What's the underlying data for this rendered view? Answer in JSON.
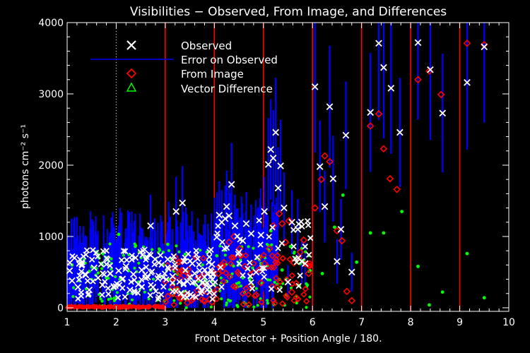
{
  "chart_data": {
    "type": "scatter",
    "title": "Visibilities − Observed, From Image, and Differences",
    "xlabel": "Front Detector + Position Angle / 180.",
    "ylabel": "photons cm⁻² s⁻¹",
    "xlim": [
      1,
      10
    ],
    "ylim": [
      -50,
      4000
    ],
    "x_ticks": [
      "1",
      "2",
      "3",
      "4",
      "5",
      "6",
      "7",
      "8",
      "9",
      "10"
    ],
    "y_ticks": [
      "0",
      "1000",
      "2000",
      "3000",
      "4000"
    ],
    "x_tick_values": [
      1,
      2,
      3,
      4,
      5,
      6,
      7,
      8,
      9,
      10
    ],
    "y_tick_values": [
      0,
      1000,
      2000,
      3000,
      4000
    ],
    "dotted_line_x": 2,
    "red_lines_x": [
      3,
      4,
      5,
      6,
      7,
      8,
      9
    ],
    "legend": {
      "position": "top-left",
      "entries": [
        {
          "label": "Observed",
          "marker": "x",
          "color": "#ffffff"
        },
        {
          "label": "Error on Observed",
          "marker": "line",
          "color": "#0000ff"
        },
        {
          "label": "From Image",
          "marker": "diamond",
          "color": "#ff0000"
        },
        {
          "label": "Vector Difference",
          "marker": "triangle",
          "color": "#00ff00"
        }
      ]
    },
    "colors": {
      "observed": "#ffffff",
      "error": "#0000ff",
      "image": "#ff0000",
      "difference": "#00ff00",
      "dividers": "#ff0000",
      "axes": "#ffffff"
    },
    "series": [
      {
        "name": "Observed",
        "x": [
          1.05,
          1.1,
          1.15,
          1.22,
          1.3,
          1.38,
          1.45,
          1.55,
          1.63,
          1.72,
          1.8,
          1.88,
          1.95,
          2.05,
          2.12,
          2.2,
          2.28,
          2.35,
          2.45,
          2.52,
          2.6,
          2.7,
          2.75,
          2.85,
          3.05,
          3.15,
          3.22,
          3.35,
          3.45,
          3.55,
          3.6,
          3.7,
          3.8,
          3.85,
          3.95,
          4.05,
          4.1,
          4.15,
          4.22,
          4.25,
          4.3,
          4.35,
          4.42,
          4.5,
          4.58,
          4.65,
          4.75,
          4.85,
          4.95,
          5.02,
          5.1,
          5.15,
          5.2,
          5.25,
          5.3,
          5.35,
          5.42,
          5.5,
          5.58,
          5.7,
          5.78,
          5.85,
          6.05,
          6.15,
          6.25,
          6.35,
          6.42,
          6.5,
          6.58,
          6.68,
          6.8,
          7.18,
          7.35,
          7.45,
          7.6,
          7.78,
          8.15,
          8.4,
          8.65,
          9.15,
          9.5
        ],
        "y": [
          520,
          380,
          700,
          290,
          610,
          460,
          250,
          560,
          420,
          320,
          610,
          480,
          300,
          520,
          400,
          580,
          250,
          470,
          330,
          530,
          420,
          1150,
          290,
          410,
          680,
          440,
          1350,
          1470,
          370,
          620,
          480,
          520,
          430,
          350,
          610,
          990,
          1300,
          1200,
          1250,
          1420,
          1290,
          1730,
          1150,
          780,
          940,
          1180,
          1040,
          500,
          1020,
          1350,
          2010,
          2220,
          2100,
          2460,
          1680,
          1990,
          1400,
          360,
          1200,
          1100,
          650,
          620,
          3100,
          1980,
          1420,
          2820,
          1810,
          650,
          1100,
          2420,
          500,
          2740,
          3710,
          3370,
          3080,
          2460,
          3720,
          3340,
          2730,
          3160,
          3660
        ]
      },
      {
        "name": "From Image",
        "x": [
          3.05,
          3.15,
          3.3,
          3.45,
          3.6,
          3.8,
          3.9,
          3.95,
          4.08,
          4.15,
          4.3,
          4.4,
          4.52,
          4.62,
          4.72,
          4.85,
          4.95,
          5.02,
          5.12,
          5.2,
          5.32,
          5.38,
          5.45,
          5.52,
          5.58,
          5.62,
          5.75,
          5.82,
          5.92,
          6.05,
          6.18,
          6.25,
          6.35,
          6.5,
          6.6,
          6.7,
          6.8,
          7.18,
          7.35,
          7.45,
          7.58,
          7.72,
          8.15,
          8.38,
          8.62,
          9.15,
          9.5
        ],
        "y": [
          160,
          200,
          130,
          70,
          160,
          90,
          120,
          80,
          480,
          600,
          920,
          1000,
          830,
          580,
          300,
          180,
          350,
          620,
          830,
          1150,
          1320,
          1180,
          920,
          1220,
          220,
          630,
          780,
          950,
          480,
          1400,
          1800,
          2130,
          2050,
          1080,
          940,
          230,
          100,
          2550,
          2720,
          2230,
          1810,
          1660,
          3200,
          3320,
          2990,
          3710,
          3690
        ]
      },
      {
        "name": "Vector Difference",
        "x": [
          1.1,
          1.25,
          1.45,
          1.65,
          1.8,
          2.05,
          2.25,
          2.45,
          2.7,
          3.05,
          3.25,
          3.45,
          3.62,
          3.85,
          4.05,
          4.25,
          4.5,
          4.72,
          4.95,
          5.15,
          5.38,
          5.55,
          5.75,
          5.95,
          6.2,
          6.45,
          6.62,
          6.9,
          7.18,
          7.45,
          7.82,
          8.15,
          8.38,
          8.65,
          9.15,
          9.5
        ],
        "y": [
          600,
          380,
          510,
          700,
          420,
          1030,
          520,
          360,
          250,
          890,
          470,
          510,
          320,
          780,
          730,
          370,
          350,
          410,
          620,
          1080,
          530,
          860,
          620,
          520,
          480,
          1130,
          1580,
          640,
          1050,
          1050,
          1350,
          580,
          40,
          220,
          760,
          140
        ]
      }
    ]
  }
}
